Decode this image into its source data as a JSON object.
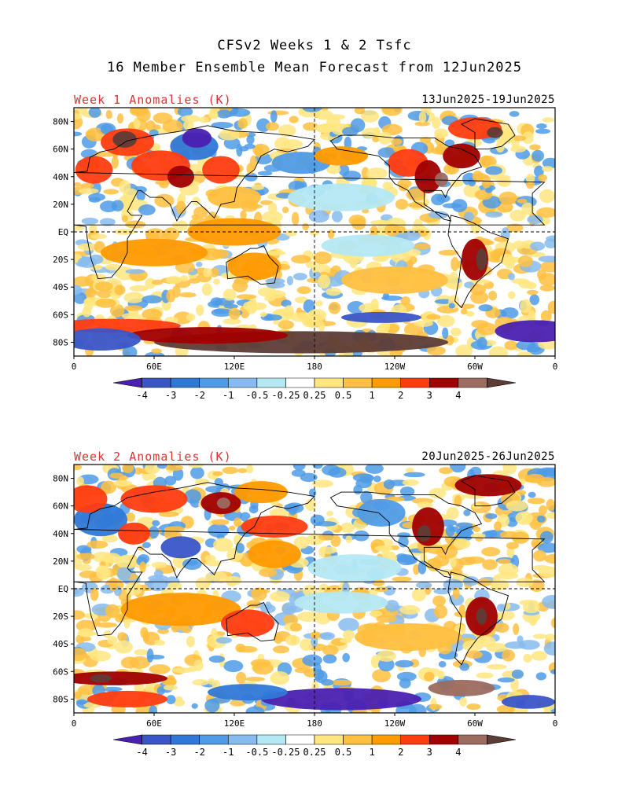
{
  "title": {
    "line1": "CFSv2 Weeks 1 & 2 Tsfc",
    "line2": "16 Member Ensemble Mean Forecast from 12Jun2025"
  },
  "panels": [
    {
      "label": "Week 1 Anomalies (K)",
      "date_range": "13Jun2025-19Jun2025",
      "lat_labels": [
        "80N",
        "60N",
        "40N",
        "20N",
        "EQ",
        "20S",
        "40S",
        "60S",
        "80S"
      ],
      "lon_labels": [
        "0",
        "60E",
        "120E",
        "180",
        "120W",
        "60W",
        "0"
      ]
    },
    {
      "label": "Week 2 Anomalies (K)",
      "date_range": "20Jun2025-26Jun2025",
      "lat_labels": [
        "80N",
        "60N",
        "40N",
        "20N",
        "EQ",
        "20S",
        "40S",
        "60S",
        "80S"
      ],
      "lon_labels": [
        "0",
        "60E",
        "120E",
        "180",
        "120W",
        "60W",
        "0"
      ]
    }
  ],
  "colorbar": {
    "tick_labels": [
      "-4",
      "-3",
      "-2",
      "-1",
      "-0.5",
      "-0.25",
      "0.25",
      "0.5",
      "1",
      "2",
      "3",
      "4"
    ],
    "colors": [
      "#4a20b0",
      "#3a55c8",
      "#2f78d8",
      "#4f9be6",
      "#87bbef",
      "#b4e8f3",
      "#ffffff",
      "#ffe680",
      "#ffc040",
      "#ff9a00",
      "#ff3c10",
      "#a00000",
      "#9c6c60",
      "#5e3c36"
    ],
    "units": "K"
  },
  "map_fields": [
    {
      "blobs": [
        {
          "lat": 65,
          "lon": 40,
          "rx": 20,
          "ry": 10,
          "c": 10
        },
        {
          "lat": 67,
          "lon": 38,
          "rx": 9,
          "ry": 6,
          "c": 13
        },
        {
          "lat": 62,
          "lon": 90,
          "rx": 18,
          "ry": 10,
          "c": 2
        },
        {
          "lat": 68,
          "lon": 92,
          "rx": 11,
          "ry": 7,
          "c": 0
        },
        {
          "lat": 48,
          "lon": 65,
          "rx": 22,
          "ry": 11,
          "c": 10
        },
        {
          "lat": 40,
          "lon": 80,
          "rx": 10,
          "ry": 8,
          "c": 11
        },
        {
          "lat": 45,
          "lon": 110,
          "rx": 14,
          "ry": 10,
          "c": 10
        },
        {
          "lat": 45,
          "lon": 15,
          "rx": 14,
          "ry": 10,
          "c": 10
        },
        {
          "lat": 50,
          "lon": 170,
          "rx": 22,
          "ry": 8,
          "c": 3
        },
        {
          "lat": 55,
          "lon": 200,
          "rx": 20,
          "ry": 7,
          "c": 9
        },
        {
          "lat": 50,
          "lon": 250,
          "rx": 15,
          "ry": 10,
          "c": 10
        },
        {
          "lat": 40,
          "lon": 265,
          "rx": 10,
          "ry": 12,
          "c": 11
        },
        {
          "lat": 38,
          "lon": 275,
          "rx": 5,
          "ry": 5,
          "c": 12
        },
        {
          "lat": 75,
          "lon": 300,
          "rx": 20,
          "ry": 8,
          "c": 10
        },
        {
          "lat": 72,
          "lon": 315,
          "rx": 6,
          "ry": 4,
          "c": 13
        },
        {
          "lat": 55,
          "lon": 290,
          "rx": 14,
          "ry": 9,
          "c": 11
        },
        {
          "lat": 25,
          "lon": 200,
          "rx": 40,
          "ry": 10,
          "c": 5
        },
        {
          "lat": 25,
          "lon": 120,
          "rx": 20,
          "ry": 8,
          "c": 8
        },
        {
          "lat": 0,
          "lon": 120,
          "rx": 35,
          "ry": 10,
          "c": 9
        },
        {
          "lat": -15,
          "lon": 60,
          "rx": 40,
          "ry": 10,
          "c": 9
        },
        {
          "lat": -25,
          "lon": 135,
          "rx": 20,
          "ry": 10,
          "c": 9
        },
        {
          "lat": -20,
          "lon": 300,
          "rx": 10,
          "ry": 15,
          "c": 11
        },
        {
          "lat": -20,
          "lon": 305,
          "rx": 4,
          "ry": 8,
          "c": 13
        },
        {
          "lat": -35,
          "lon": 240,
          "rx": 40,
          "ry": 10,
          "c": 8
        },
        {
          "lat": -10,
          "lon": 220,
          "rx": 35,
          "ry": 8,
          "c": 5
        },
        {
          "lat": -68,
          "lon": 30,
          "rx": 50,
          "ry": 5,
          "c": 10
        },
        {
          "lat": -62,
          "lon": 230,
          "rx": 30,
          "ry": 4,
          "c": 1
        },
        {
          "lat": -80,
          "lon": 170,
          "rx": 110,
          "ry": 8,
          "c": 13
        },
        {
          "lat": -75,
          "lon": 100,
          "rx": 60,
          "ry": 6,
          "c": 11
        },
        {
          "lat": -78,
          "lon": 20,
          "rx": 30,
          "ry": 8,
          "c": 1
        },
        {
          "lat": -72,
          "lon": 345,
          "rx": 30,
          "ry": 8,
          "c": 0
        }
      ]
    },
    {
      "blobs": [
        {
          "lat": 65,
          "lon": 60,
          "rx": 25,
          "ry": 10,
          "c": 10
        },
        {
          "lat": 62,
          "lon": 110,
          "rx": 15,
          "ry": 8,
          "c": 11
        },
        {
          "lat": 62,
          "lon": 112,
          "rx": 5,
          "ry": 4,
          "c": 12
        },
        {
          "lat": 70,
          "lon": 140,
          "rx": 20,
          "ry": 8,
          "c": 9
        },
        {
          "lat": 50,
          "lon": 20,
          "rx": 20,
          "ry": 12,
          "c": 2
        },
        {
          "lat": 30,
          "lon": 80,
          "rx": 15,
          "ry": 8,
          "c": 1
        },
        {
          "lat": 40,
          "lon": 45,
          "rx": 12,
          "ry": 8,
          "c": 10
        },
        {
          "lat": 45,
          "lon": 150,
          "rx": 25,
          "ry": 8,
          "c": 10
        },
        {
          "lat": 55,
          "lon": 230,
          "rx": 18,
          "ry": 10,
          "c": 3
        },
        {
          "lat": 45,
          "lon": 265,
          "rx": 12,
          "ry": 14,
          "c": 11
        },
        {
          "lat": 40,
          "lon": 262,
          "rx": 5,
          "ry": 6,
          "c": 13
        },
        {
          "lat": 75,
          "lon": 310,
          "rx": 25,
          "ry": 8,
          "c": 11
        },
        {
          "lat": 65,
          "lon": 10,
          "rx": 15,
          "ry": 10,
          "c": 10
        },
        {
          "lat": 25,
          "lon": 150,
          "rx": 20,
          "ry": 10,
          "c": 9
        },
        {
          "lat": 15,
          "lon": 210,
          "rx": 35,
          "ry": 10,
          "c": 5
        },
        {
          "lat": -15,
          "lon": 80,
          "rx": 45,
          "ry": 12,
          "c": 9
        },
        {
          "lat": -25,
          "lon": 130,
          "rx": 20,
          "ry": 10,
          "c": 10
        },
        {
          "lat": -20,
          "lon": 305,
          "rx": 12,
          "ry": 14,
          "c": 11
        },
        {
          "lat": -20,
          "lon": 305,
          "rx": 4,
          "ry": 6,
          "c": 13
        },
        {
          "lat": -35,
          "lon": 250,
          "rx": 40,
          "ry": 10,
          "c": 8
        },
        {
          "lat": -10,
          "lon": 200,
          "rx": 35,
          "ry": 8,
          "c": 5
        },
        {
          "lat": -65,
          "lon": 30,
          "rx": 40,
          "ry": 5,
          "c": 11
        },
        {
          "lat": -65,
          "lon": 20,
          "rx": 8,
          "ry": 3,
          "c": 13
        },
        {
          "lat": -80,
          "lon": 200,
          "rx": 60,
          "ry": 8,
          "c": 0
        },
        {
          "lat": -75,
          "lon": 130,
          "rx": 30,
          "ry": 6,
          "c": 2
        },
        {
          "lat": -72,
          "lon": 290,
          "rx": 25,
          "ry": 6,
          "c": 12
        },
        {
          "lat": -80,
          "lon": 40,
          "rx": 30,
          "ry": 6,
          "c": 10
        },
        {
          "lat": -82,
          "lon": 340,
          "rx": 20,
          "ry": 5,
          "c": 1
        }
      ]
    }
  ]
}
